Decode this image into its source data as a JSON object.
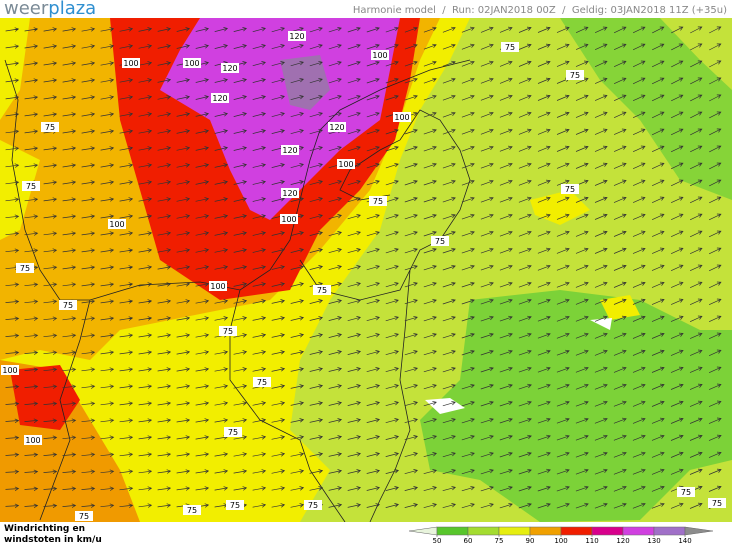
{
  "header": {
    "logo": {
      "part1": "weer",
      "part2": "plaza"
    },
    "info": "Harmonie model  /  Run: 02JAN2018 00Z  /  Geldig: 03JAN2018 11Z (+35u)"
  },
  "footer": {
    "line1": "Windrichting en",
    "line2": "windstoten in km/u"
  },
  "legend": {
    "ticks": [
      50,
      60,
      75,
      90,
      100,
      110,
      120,
      130,
      140
    ],
    "colors": [
      "#e8f4dc",
      "#58c62c",
      "#a4dc30",
      "#e6ee10",
      "#f0a000",
      "#f01e00",
      "#d8008c",
      "#d040e0",
      "#a070c8",
      "#8c8c8c"
    ]
  },
  "contour_labels": [
    "120",
    "100",
    "100",
    "120",
    "100",
    "75",
    "75",
    "120",
    "100",
    "75",
    "120",
    "120",
    "100",
    "75",
    "120",
    "75",
    "75",
    "100",
    "100",
    "75",
    "75",
    "100",
    "75",
    "75",
    "75",
    "100",
    "75",
    "100",
    "75",
    "75",
    "75",
    "75",
    "75",
    "75",
    "75"
  ]
}
